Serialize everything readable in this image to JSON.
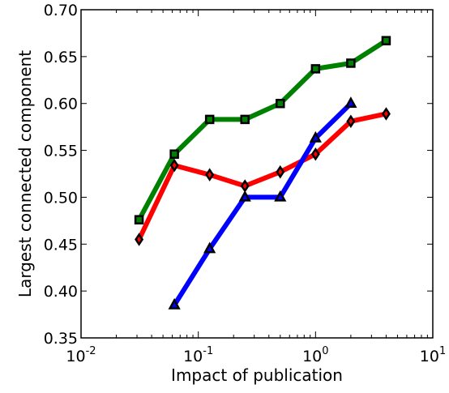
{
  "chart_data": {
    "type": "line",
    "xlabel": "Impact of publication",
    "ylabel": "Largest connected component",
    "x_scale": "log",
    "xlim": [
      0.01,
      10
    ],
    "ylim": [
      0.35,
      0.7
    ],
    "x_ticks": [
      {
        "value": 0.01,
        "base": "10",
        "exp": "-2"
      },
      {
        "value": 0.1,
        "base": "10",
        "exp": "-1"
      },
      {
        "value": 1,
        "base": "10",
        "exp": "0"
      },
      {
        "value": 10,
        "base": "10",
        "exp": "1"
      }
    ],
    "y_ticks": [
      "0.35",
      "0.40",
      "0.45",
      "0.50",
      "0.55",
      "0.60",
      "0.65",
      "0.70"
    ],
    "grid": false,
    "series": [
      {
        "color": "#008000",
        "marker": "square",
        "x": [
          0.03125,
          0.0625,
          0.125,
          0.25,
          0.5,
          1,
          2,
          4
        ],
        "values": [
          0.476,
          0.546,
          0.583,
          0.583,
          0.6,
          0.637,
          0.643,
          0.667
        ]
      },
      {
        "color": "#ff0000",
        "marker": "diamond",
        "x": [
          0.03125,
          0.0625,
          0.125,
          0.25,
          0.5,
          1,
          2,
          4
        ],
        "values": [
          0.455,
          0.534,
          0.524,
          0.512,
          0.527,
          0.546,
          0.581,
          0.589
        ]
      },
      {
        "color": "#0000ff",
        "marker": "triangle",
        "x": [
          0.0625,
          0.125,
          0.25,
          0.5,
          1,
          2
        ],
        "values": [
          0.385,
          0.445,
          0.5,
          0.5,
          0.563,
          0.6
        ]
      }
    ]
  }
}
